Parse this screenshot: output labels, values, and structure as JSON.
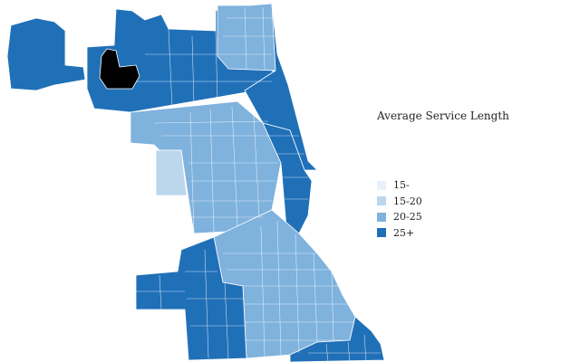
{
  "legend": {
    "title": "Average Service Length",
    "items": [
      {
        "label": "15-",
        "color": "#e8f1fb"
      },
      {
        "label": "15-20",
        "color": "#bcd6ec"
      },
      {
        "label": "20-25",
        "color": "#7fb2dd"
      },
      {
        "label": "25+",
        "color": "#2070b8"
      }
    ]
  },
  "colors": {
    "highlight": "#000000",
    "border": "#ffffff",
    "background": "#ffffff"
  }
}
